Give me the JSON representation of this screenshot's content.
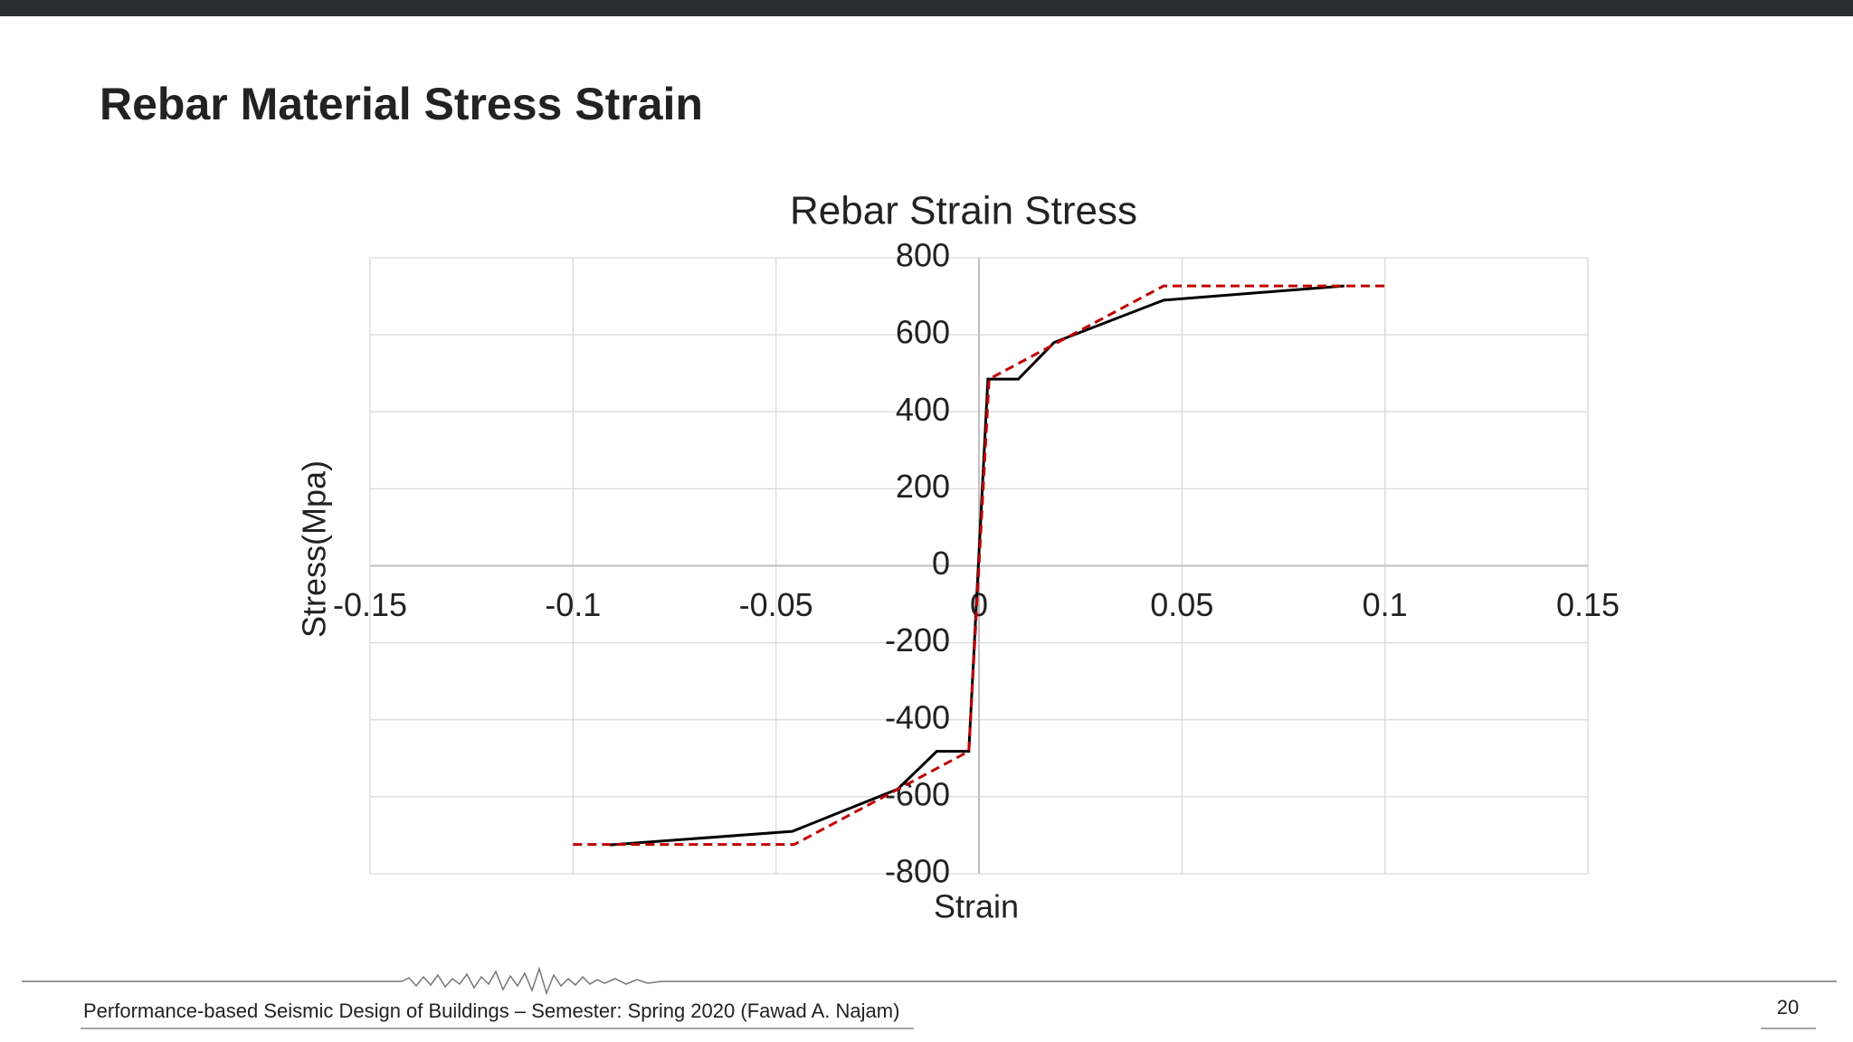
{
  "slide": {
    "title": "Rebar Material Stress Strain",
    "footer": "Performance-based Seismic Design of Buildings – Semester: Spring 2020 (Fawad A. Najam)",
    "page": "20"
  },
  "chart_data": {
    "type": "line",
    "title": "Rebar Strain Stress",
    "x_label": "Strain",
    "y_label": "Stress(Mpa)",
    "xlim": [
      -0.15,
      0.15
    ],
    "xticks": [
      -0.15,
      -0.1,
      -0.05,
      0,
      0.05,
      0.1,
      0.15
    ],
    "ylim": [
      -800,
      800
    ],
    "yticks": [
      -800,
      -600,
      -400,
      -200,
      0,
      200,
      400,
      600,
      800
    ],
    "grid": true,
    "series": [
      {
        "color": "#000000",
        "style": "solid",
        "x": [
          -0.091,
          -0.046,
          -0.02,
          -0.0104,
          -0.0025,
          0.0022,
          0.0097,
          0.0185,
          0.0455,
          0.09
        ],
        "values": [
          -725,
          -690,
          -580,
          -482,
          -482,
          485,
          485,
          580,
          690,
          727
        ]
      },
      {
        "color": "#c00000",
        "style": "dashed",
        "x": [
          -0.1,
          -0.0455,
          -0.0025,
          0.0025,
          0.0455,
          0.1
        ],
        "values": [
          -724,
          -724,
          -482,
          485,
          727,
          727
        ]
      }
    ]
  }
}
